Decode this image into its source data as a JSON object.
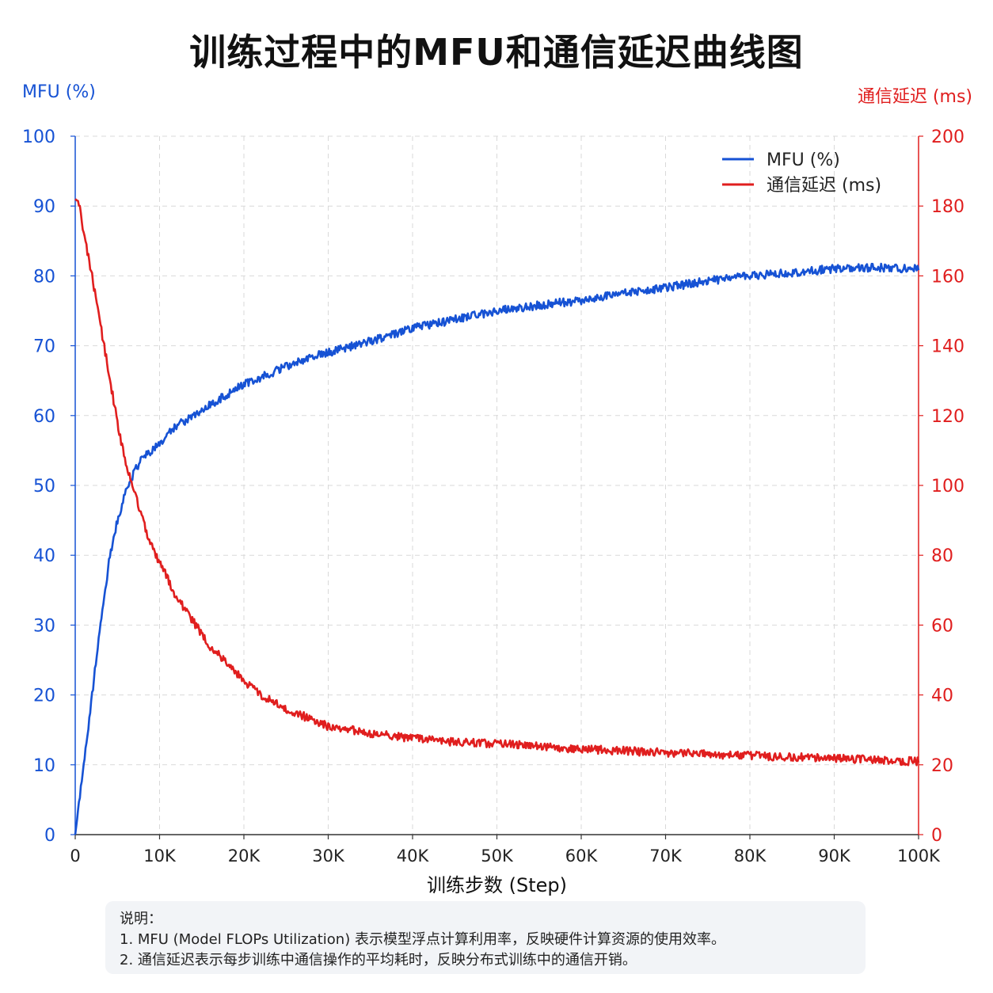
{
  "title": "训练过程中的MFU和通信延迟曲线图",
  "colors": {
    "mfu": "#1652d4",
    "latency": "#e01e1e",
    "grid": "#d9d9d9",
    "note_bg": "#f2f4f7"
  },
  "chart_data": {
    "type": "line",
    "title": "训练过程中的MFU和通信延迟曲线图",
    "xlabel": "训练步数 (Step)",
    "ylabel_left": "MFU (%)",
    "ylabel_right": "通信延迟 (ms)",
    "xlim": [
      0,
      100000
    ],
    "ylim_left": [
      0,
      100
    ],
    "ylim_right": [
      0,
      200
    ],
    "x_ticks": [
      0,
      10000,
      20000,
      30000,
      40000,
      50000,
      60000,
      70000,
      80000,
      90000,
      100000
    ],
    "x_tick_labels": [
      "0",
      "10K",
      "20K",
      "30K",
      "40K",
      "50K",
      "60K",
      "70K",
      "80K",
      "90K",
      "100K"
    ],
    "y_left_ticks": [
      0,
      10,
      20,
      30,
      40,
      50,
      60,
      70,
      80,
      90,
      100
    ],
    "y_right_ticks": [
      0,
      20,
      40,
      60,
      80,
      100,
      120,
      140,
      160,
      180,
      200
    ],
    "grid": true,
    "legend_position": "top-right",
    "series": [
      {
        "name": "MFU (%)",
        "axis": "left",
        "x": [
          0,
          1000,
          2000,
          3000,
          4000,
          5000,
          6000,
          7000,
          8000,
          9000,
          10000,
          12000,
          14000,
          16000,
          18000,
          20000,
          22000,
          25000,
          28000,
          30000,
          33000,
          36000,
          40000,
          44000,
          48000,
          50000,
          55000,
          60000,
          65000,
          70000,
          75000,
          80000,
          85000,
          90000,
          95000,
          100000
        ],
        "y": [
          0,
          10,
          20,
          30,
          39,
          45,
          49,
          52,
          54,
          55,
          56,
          58.5,
          60,
          61.5,
          63,
          64.5,
          65.5,
          67,
          68.5,
          69,
          70,
          71,
          72.5,
          73.5,
          74.5,
          75,
          75.8,
          76.5,
          77.5,
          78.3,
          79.3,
          80,
          80.5,
          81,
          81.2,
          81
        ]
      },
      {
        "name": "通信延迟 (ms)",
        "axis": "right",
        "x": [
          0,
          500,
          1000,
          2000,
          3000,
          4000,
          5000,
          6000,
          7000,
          8000,
          9000,
          10000,
          11000,
          12000,
          14000,
          16000,
          18000,
          20000,
          22000,
          25000,
          28000,
          30000,
          35000,
          40000,
          45000,
          50000,
          55000,
          60000,
          65000,
          70000,
          75000,
          80000,
          85000,
          90000,
          95000,
          100000
        ],
        "y": [
          182,
          181,
          172,
          160,
          146,
          132,
          118,
          106,
          98,
          90,
          83,
          78,
          73,
          68,
          61,
          54,
          49,
          44,
          40,
          36,
          33,
          31,
          29,
          27.5,
          26.5,
          26,
          25.3,
          24.5,
          24,
          23.5,
          23,
          22.6,
          22.2,
          21.8,
          21.4,
          21
        ]
      }
    ]
  },
  "note": {
    "heading": "说明：",
    "line1": "1. MFU (Model FLOPs Utilization) 表示模型浮点计算利用率，反映硬件计算资源的使用效率。",
    "line2": "2. 通信延迟表示每步训练中通信操作的平均耗时，反映分布式训练中的通信开销。"
  }
}
